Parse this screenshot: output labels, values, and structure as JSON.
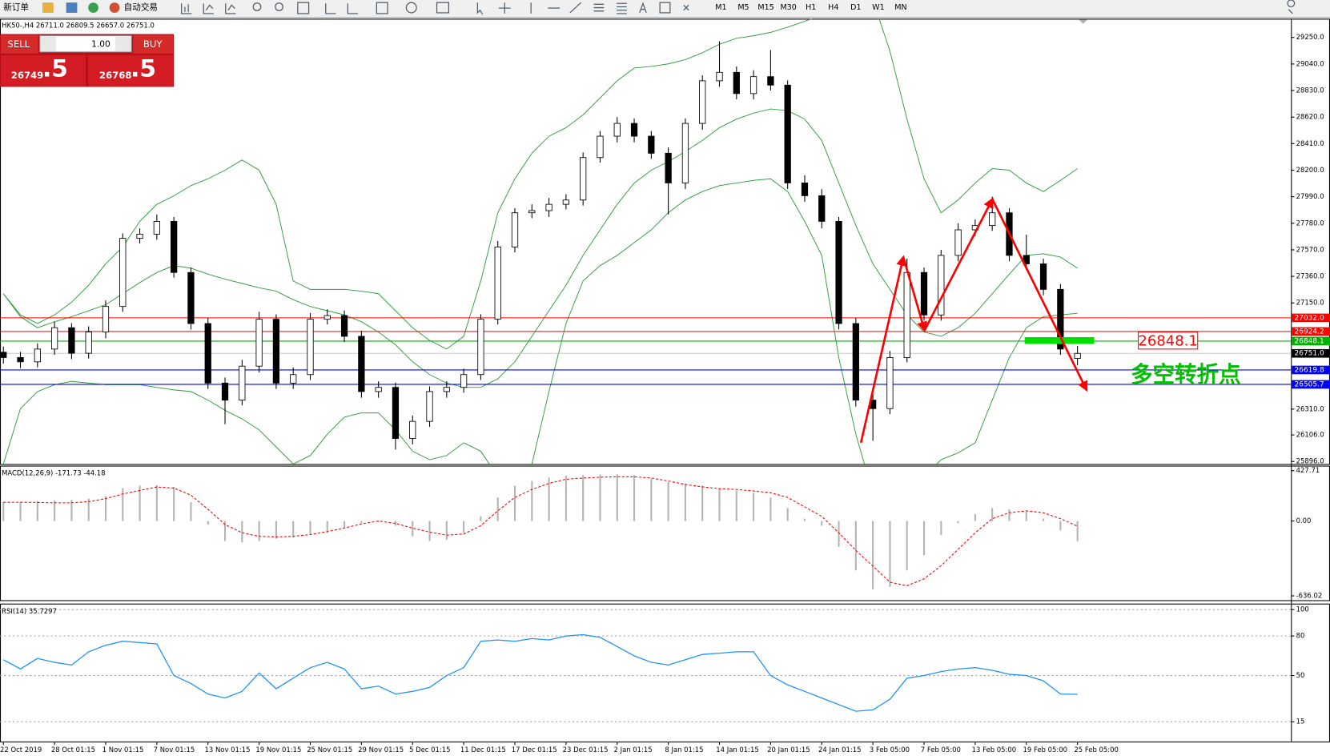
{
  "toolbar": {
    "new_order": "新订单",
    "auto_trade": "自动交易",
    "timeframes": [
      "M1",
      "M5",
      "M15",
      "M30",
      "H1",
      "H4",
      "D1",
      "W1",
      "MN"
    ]
  },
  "trade": {
    "sell": "SELL",
    "lots": "1.00",
    "buy": "BUY",
    "bid_main": "26749",
    "bid_frac": ".5",
    "ask_main": "26768",
    "ask_frac": ".5"
  },
  "annotations": {
    "price_box": "26848.1",
    "text": "多空转折点"
  },
  "chart_data": [
    {
      "type": "candlestick",
      "title": "HK50-,H4  26711.0 26809.5 26657.0 26751.0",
      "categories": [
        "22 Oct 2019",
        null,
        null,
        "28 Oct 01:15",
        null,
        null,
        "1 Nov 01:15",
        null,
        null,
        "7 Nov 01:15",
        null,
        null,
        "13 Nov 01:15",
        null,
        null,
        "19 Nov 01:15",
        null,
        null,
        "25 Nov 01:15",
        null,
        null,
        "29 Nov 01:15",
        null,
        null,
        "5 Dec 01:15",
        null,
        null,
        "11 Dec 01:15",
        null,
        null,
        "17 Dec 01:15",
        null,
        null,
        "23 Dec 01:15",
        null,
        null,
        "2 Jan 01:15",
        null,
        null,
        "8 Jan 01:15",
        null,
        null,
        "14 Jan 01:15",
        null,
        null,
        "20 Jan 01:15",
        null,
        null,
        "24 Jan 01:15",
        null,
        null,
        "3 Feb 05:00",
        null,
        null,
        "7 Feb 05:00",
        null,
        null,
        "13 Feb 05:00",
        null,
        null,
        "19 Feb 05:00",
        null,
        null,
        "25 Feb 05:00"
      ],
      "open": [
        26760,
        26718,
        26684,
        26785,
        26954,
        26752,
        26920,
        27122,
        27661,
        27694,
        27795,
        27391,
        26987,
        26516,
        26381,
        26650,
        27021,
        26516,
        26583,
        27021,
        27050,
        26886,
        26449,
        26482,
        26078,
        26213,
        26449,
        26482,
        26583,
        27021,
        27593,
        27863,
        27880,
        27930,
        27964,
        28300,
        28469,
        28570,
        28469,
        28334,
        28099,
        28570,
        28907,
        28974,
        28806,
        28940,
        28873,
        28099,
        27998,
        27795,
        26987,
        26381,
        26314,
        26718,
        27391,
        27055,
        27526,
        27728,
        27762,
        27863,
        27526,
        27459,
        27257,
        26711
      ],
      "high": [
        26805,
        26763,
        26830,
        27000,
        26990,
        26965,
        27170,
        27700,
        27740,
        27850,
        27830,
        27430,
        27030,
        26560,
        26700,
        27080,
        27060,
        26640,
        27070,
        27100,
        27090,
        26930,
        26530,
        26520,
        26260,
        26490,
        26530,
        26630,
        27060,
        27640,
        27900,
        27930,
        27980,
        28010,
        28340,
        28510,
        28620,
        28610,
        28510,
        28380,
        28610,
        28950,
        29220,
        29020,
        28990,
        29150,
        28910,
        28160,
        28050,
        27830,
        27030,
        26430,
        26770,
        27500,
        27430,
        27570,
        27780,
        27810,
        27990,
        27900,
        27690,
        27500,
        27300,
        26809.5
      ],
      "low": [
        26670,
        26635,
        26640,
        26740,
        26705,
        26710,
        26870,
        27080,
        27620,
        27650,
        27350,
        26940,
        26470,
        26190,
        26340,
        26600,
        26470,
        26470,
        26540,
        26980,
        26840,
        26400,
        26400,
        25990,
        26030,
        26170,
        26400,
        26440,
        26540,
        26980,
        27550,
        27820,
        27830,
        27890,
        27920,
        28260,
        28420,
        28420,
        28290,
        27850,
        28050,
        28520,
        28860,
        28760,
        28760,
        28830,
        28050,
        27950,
        27740,
        26940,
        26330,
        26060,
        26270,
        26680,
        27010,
        27010,
        27480,
        27680,
        27720,
        27480,
        27410,
        27210,
        26740,
        26657
      ],
      "close": [
        26718,
        26684,
        26785,
        26954,
        26752,
        26920,
        27122,
        27661,
        27694,
        27795,
        27391,
        26987,
        26516,
        26381,
        26650,
        27021,
        26516,
        26583,
        27021,
        27050,
        26886,
        26449,
        26482,
        26078,
        26213,
        26449,
        26482,
        26583,
        27021,
        27593,
        27863,
        27880,
        27930,
        27964,
        28300,
        28469,
        28570,
        28469,
        28334,
        28099,
        28570,
        28907,
        28974,
        28806,
        28940,
        28873,
        28099,
        27998,
        27795,
        26987,
        26381,
        26314,
        26718,
        27391,
        27055,
        27526,
        27728,
        27762,
        27863,
        27526,
        27459,
        27257,
        26785,
        26751
      ],
      "up_color": "#ffffff",
      "down_color": "#000000",
      "bands": {
        "color": "#2e9e3e",
        "upper": [
          27223,
          27055,
          26987,
          27055,
          27156,
          27290,
          27459,
          27593,
          27795,
          27930,
          27997,
          28078,
          28132,
          28200,
          28280,
          28200,
          27930,
          27324,
          27257,
          27257,
          27257,
          27243,
          27223,
          27088,
          26954,
          26853,
          26785,
          26886,
          27324,
          27863,
          28132,
          28334,
          28469,
          28536,
          28637,
          28772,
          28907,
          29008,
          29021,
          29041,
          29075,
          29129,
          29196,
          29243,
          29263,
          29290,
          29331,
          29378,
          29425,
          29479,
          29546,
          29546,
          29142,
          28604,
          28132,
          27863,
          27964,
          28098,
          28213,
          28200,
          28098,
          28031,
          28119,
          28213
        ],
        "middle": [
          27223,
          27041,
          26954,
          27001,
          27041,
          27088,
          27136,
          27223,
          27311,
          27391,
          27445,
          27425,
          27378,
          27338,
          27304,
          27270,
          27243,
          27176,
          27122,
          27088,
          27055,
          27001,
          26920,
          26819,
          26684,
          26583,
          26516,
          26482,
          26482,
          26550,
          26684,
          26886,
          27088,
          27290,
          27526,
          27728,
          27930,
          28098,
          28200,
          28267,
          28348,
          28435,
          28536,
          28604,
          28651,
          28684,
          28671,
          28604,
          28435,
          28098,
          27762,
          27459,
          27257,
          27055,
          26920,
          26886,
          26954,
          27068,
          27223,
          27378,
          27526,
          27539,
          27513,
          27425
        ],
        "lower": [
          25876,
          26314,
          26449,
          26503,
          26530,
          26516,
          26503,
          26503,
          26503,
          26482,
          26462,
          26449,
          26381,
          26300,
          26233,
          26146,
          26011,
          25876,
          25943,
          26112,
          26247,
          26280,
          26280,
          26146,
          25977,
          25910,
          25943,
          26044,
          25977,
          25775,
          25708,
          25876,
          26449,
          26987,
          27324,
          27445,
          27526,
          27627,
          27728,
          27863,
          27964,
          28031,
          28078,
          28098,
          28119,
          28132,
          28031,
          27795,
          27526,
          26718,
          26112,
          25641,
          25506,
          25573,
          25775,
          25910,
          25964,
          26044,
          26381,
          26718,
          26954,
          27041,
          27055,
          27068
        ]
      },
      "hlines": [
        {
          "value": 27032.0,
          "label": "27032.0",
          "color": "#ff0000"
        },
        {
          "value": 26924.2,
          "label": "26924.2",
          "color": "#ff0000"
        },
        {
          "value": 26848.1,
          "label": "26848.1",
          "color": "#00b000"
        },
        {
          "value": 26751.0,
          "label": "26751.0",
          "color": "#c8c8c8",
          "label_color": "#000000"
        },
        {
          "value": 26619.8,
          "label": "26619.8",
          "color": "#0000ff"
        },
        {
          "value": 26505.7,
          "label": "26505.7",
          "color": "#0000ff"
        }
      ],
      "ylim": [
        25876,
        29398
      ],
      "yticks": [
        {
          "value": 29250,
          "label": "29250.0"
        },
        {
          "value": 29040,
          "label": "29040.0"
        },
        {
          "value": 28830,
          "label": "28830.0"
        },
        {
          "value": 28620,
          "label": "28620.0"
        },
        {
          "value": 28410,
          "label": "28410.0"
        },
        {
          "value": 28200,
          "label": "28200.0"
        },
        {
          "value": 27990,
          "label": "27990.0"
        },
        {
          "value": 27780,
          "label": "27780.0"
        },
        {
          "value": 27570,
          "label": "27570.0"
        },
        {
          "value": 27360,
          "label": "27360.0"
        },
        {
          "value": 27150,
          "label": "27150.0"
        },
        {
          "value": 26310,
          "label": "26310.0"
        },
        {
          "value": 26106,
          "label": "26106.0"
        },
        {
          "value": 25896,
          "label": "25896.0"
        }
      ],
      "grid": false
    },
    {
      "type": "macd",
      "title": "MACD(12,26,9) -171.73 -44.18",
      "histogram": [
        159,
        165,
        170,
        175,
        180,
        190,
        210,
        280,
        300,
        304,
        290,
        160,
        -30,
        -170,
        -181,
        -170,
        -150,
        -140,
        -120,
        -100,
        -60,
        -20,
        -10,
        -40,
        -130,
        -170,
        -160,
        -100,
        40,
        200,
        300,
        340,
        370,
        385,
        390,
        395,
        398,
        390,
        360,
        330,
        320,
        300,
        280,
        260,
        240,
        200,
        110,
        20,
        -40,
        -220,
        -420,
        -580,
        -560,
        -420,
        -290,
        -120,
        -20,
        60,
        110,
        100,
        80,
        20,
        -80,
        -171.73
      ],
      "signal": [
        159,
        160,
        158,
        155,
        155,
        165,
        190,
        230,
        260,
        289,
        280,
        220,
        100,
        -30,
        -100,
        -130,
        -135,
        -130,
        -115,
        -90,
        -60,
        -25,
        0,
        -20,
        -60,
        -94,
        -120,
        -110,
        -40,
        87,
        200,
        268,
        320,
        355,
        365,
        372,
        376,
        376,
        365,
        340,
        310,
        290,
        275,
        268,
        255,
        240,
        200,
        120,
        40,
        -100,
        -250,
        -383,
        -520,
        -550,
        -492,
        -380,
        -240,
        -100,
        20,
        70,
        87,
        70,
        20,
        -44.18
      ],
      "hist_color": "#b4b4b4",
      "signal_color": "#ff0000",
      "ylim": [
        -673,
        463
      ],
      "yticks": [
        {
          "value": 427.71,
          "label": "427.71"
        },
        {
          "value": 0,
          "label": "0.00"
        },
        {
          "value": -636.02,
          "label": "-636.02"
        }
      ],
      "grid": false
    },
    {
      "type": "line",
      "title": "RSI(14) 35.7297",
      "values": [
        62,
        55,
        63,
        60,
        58,
        68,
        73,
        76,
        75,
        74,
        50,
        44,
        36,
        33,
        38,
        52,
        40,
        48,
        56,
        60,
        55,
        40,
        42,
        36,
        38,
        41,
        50,
        56,
        76,
        77,
        76,
        78,
        77,
        80,
        81,
        79,
        72,
        65,
        60,
        58,
        62,
        66,
        67,
        68,
        68,
        50,
        43,
        38,
        33,
        28,
        23,
        24,
        32,
        48,
        50,
        53,
        55,
        56,
        54,
        51,
        50,
        46,
        36,
        35.7297
      ],
      "color": "#1e90ff",
      "ylim": [
        0,
        103.9
      ],
      "yticks": [
        100,
        80,
        50,
        15
      ],
      "grid": true
    }
  ]
}
